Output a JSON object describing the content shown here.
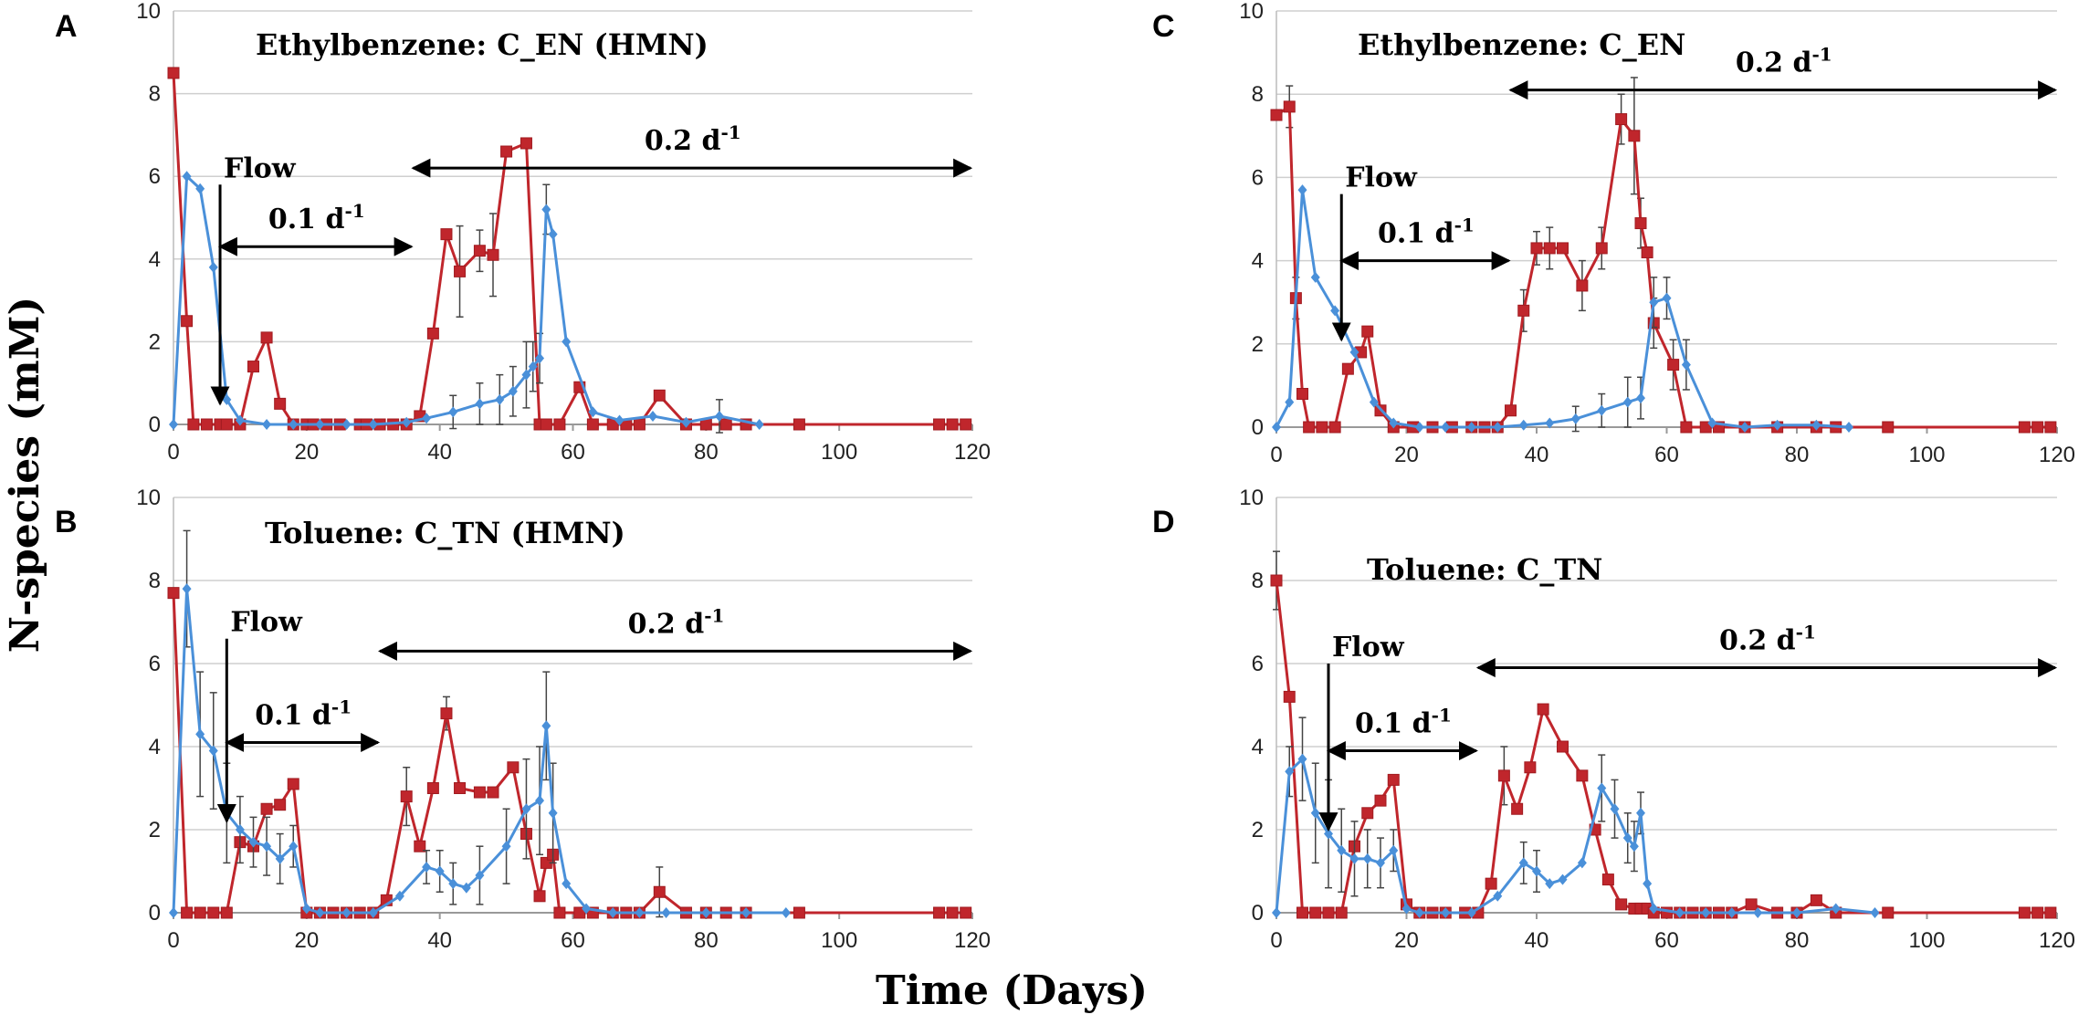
{
  "shared": {
    "y_axis_label": "N-species (mM)",
    "x_axis_label": "Time (Days)",
    "colors": {
      "red_series": "#c0262c",
      "blue_series": "#4a90d9",
      "grid": "#cfcfcf",
      "arrow": "#000000",
      "errorbar": "#444444"
    }
  },
  "chart_data": [
    {
      "type": "line",
      "panel": "A",
      "title": "Ethylbenzene: C_EN (HMN)",
      "xlim": [
        0,
        120
      ],
      "ylim": [
        0,
        10
      ],
      "xticks": [
        0,
        20,
        40,
        60,
        80,
        100,
        120
      ],
      "yticks": [
        0,
        2,
        4,
        6,
        8,
        10
      ],
      "annotations": {
        "flow": {
          "label": "Flow",
          "x": 7,
          "y_from": 5.8,
          "y_to": 0.5
        },
        "rate1": {
          "label": "0.1 d",
          "sup": "-1",
          "x_from": 7,
          "x_to": 36,
          "y": 4.3
        },
        "rate2": {
          "label": "0.2 d",
          "sup": "-1",
          "x_from": 36,
          "x_to": 120,
          "y": 6.2
        }
      },
      "series": [
        {
          "name": "red",
          "x": [
            0,
            2,
            3,
            5,
            7,
            8,
            10,
            12,
            14,
            16,
            18,
            20,
            21,
            23,
            25,
            28,
            29,
            31,
            33,
            35,
            37,
            39,
            41,
            43,
            46,
            48,
            50,
            53,
            55,
            56,
            58,
            61,
            63,
            66,
            68,
            70,
            73,
            77,
            80,
            83,
            86,
            94,
            115,
            117,
            119
          ],
          "y": [
            8.5,
            2.5,
            0,
            0,
            0,
            0,
            0,
            1.4,
            2.1,
            0.5,
            0,
            0,
            0,
            0,
            0,
            0,
            0,
            0,
            0,
            0,
            0.2,
            2.2,
            4.6,
            3.7,
            4.2,
            4.1,
            6.6,
            6.8,
            0,
            0,
            0,
            0.9,
            0,
            0,
            0,
            0,
            0.7,
            0,
            0,
            0,
            0,
            0,
            0,
            0,
            0
          ],
          "err": [
            0,
            0,
            0,
            0,
            0,
            0,
            0,
            0,
            0,
            0,
            0,
            0,
            0,
            0,
            0,
            0,
            0,
            0,
            0,
            0,
            0,
            0,
            0,
            1.1,
            0.5,
            1.0,
            0,
            0,
            0,
            0,
            0,
            0,
            0,
            0,
            0,
            0,
            0,
            0,
            0,
            0,
            0,
            0,
            0,
            0,
            0
          ]
        },
        {
          "name": "blue",
          "x": [
            0,
            2,
            4,
            6,
            8,
            10,
            14,
            18,
            22,
            26,
            30,
            35,
            38,
            42,
            46,
            49,
            51,
            53,
            54,
            55,
            56,
            57,
            59,
            63,
            67,
            72,
            77,
            82,
            88
          ],
          "y": [
            0,
            6.0,
            5.7,
            3.8,
            0.6,
            0.1,
            0,
            0,
            0,
            0,
            0,
            0.05,
            0.15,
            0.3,
            0.5,
            0.6,
            0.8,
            1.2,
            1.4,
            1.6,
            5.2,
            4.6,
            2.0,
            0.3,
            0.1,
            0.2,
            0.05,
            0.2,
            0
          ],
          "err": [
            0,
            0,
            0,
            0,
            0,
            0,
            0,
            0,
            0,
            0,
            0,
            0,
            0,
            0.4,
            0.5,
            0.6,
            0.6,
            0.8,
            0.6,
            0.6,
            0.6,
            0,
            0,
            0,
            0,
            0,
            0,
            0.4,
            0
          ]
        }
      ]
    },
    {
      "type": "line",
      "panel": "B",
      "title": "Toluene: C_TN (HMN)",
      "xlim": [
        0,
        120
      ],
      "ylim": [
        0,
        10
      ],
      "xticks": [
        0,
        20,
        40,
        60,
        80,
        100,
        120
      ],
      "yticks": [
        0,
        2,
        4,
        6,
        8,
        10
      ],
      "annotations": {
        "flow": {
          "label": "Flow",
          "x": 8,
          "y_from": 6.6,
          "y_to": 2.2
        },
        "rate1": {
          "label": "0.1 d",
          "sup": "-1",
          "x_from": 8,
          "x_to": 31,
          "y": 4.1
        },
        "rate2": {
          "label": "0.2 d",
          "sup": "-1",
          "x_from": 31,
          "x_to": 120,
          "y": 6.3
        }
      },
      "series": [
        {
          "name": "red",
          "x": [
            0,
            2,
            4,
            6,
            8,
            10,
            12,
            14,
            16,
            18,
            20,
            22,
            24,
            26,
            28,
            30,
            32,
            35,
            37,
            39,
            41,
            43,
            46,
            48,
            51,
            53,
            55,
            56,
            57,
            58,
            61,
            63,
            66,
            68,
            70,
            73,
            77,
            80,
            83,
            86,
            94,
            115,
            117,
            119
          ],
          "y": [
            7.7,
            0,
            0,
            0,
            0,
            1.7,
            1.6,
            2.5,
            2.6,
            3.1,
            0,
            0,
            0,
            0,
            0,
            0,
            0.3,
            2.8,
            1.6,
            3.0,
            4.8,
            3.0,
            2.9,
            2.9,
            3.5,
            1.9,
            0.4,
            1.2,
            1.4,
            0,
            0,
            0,
            0,
            0,
            0,
            0.5,
            0,
            0,
            0,
            0,
            0,
            0,
            0,
            0
          ],
          "err": [
            0,
            0,
            0,
            0,
            0,
            0,
            0,
            0,
            0,
            0,
            0,
            0,
            0,
            0,
            0,
            0,
            0,
            0.7,
            0,
            0,
            0.4,
            0,
            0,
            0,
            0,
            0,
            0,
            0,
            0,
            0,
            0,
            0,
            0,
            0,
            0,
            0.6,
            0,
            0,
            0,
            0,
            0,
            0,
            0,
            0
          ]
        },
        {
          "name": "blue",
          "x": [
            0,
            2,
            4,
            6,
            8,
            10,
            12,
            14,
            16,
            18,
            20,
            22,
            26,
            30,
            34,
            38,
            40,
            42,
            44,
            46,
            50,
            53,
            55,
            56,
            57,
            59,
            62,
            66,
            70,
            74,
            80,
            86,
            92
          ],
          "y": [
            0,
            7.8,
            4.3,
            3.9,
            2.4,
            2.0,
            1.7,
            1.6,
            1.3,
            1.6,
            0.1,
            0,
            0,
            0,
            0.4,
            1.1,
            1.0,
            0.7,
            0.6,
            0.9,
            1.6,
            2.5,
            2.7,
            4.5,
            2.4,
            0.7,
            0.1,
            0,
            0,
            0,
            0,
            0,
            0
          ],
          "err": [
            0,
            1.4,
            1.5,
            1.4,
            1.2,
            0.8,
            0.6,
            0.7,
            0.6,
            0.5,
            0,
            0,
            0,
            0,
            0,
            0.4,
            0.5,
            0.5,
            0,
            0.7,
            0.9,
            1.2,
            1.3,
            1.3,
            1.2,
            0,
            0,
            0,
            0,
            0,
            0,
            0,
            0
          ]
        }
      ]
    },
    {
      "type": "line",
      "panel": "C",
      "title": "Ethylbenzene: C_EN",
      "xlim": [
        0,
        120
      ],
      "ylim": [
        0,
        10
      ],
      "xticks": [
        0,
        20,
        40,
        60,
        80,
        100,
        120
      ],
      "yticks": [
        0,
        2,
        4,
        6,
        8,
        10
      ],
      "annotations": {
        "flow": {
          "label": "Flow",
          "x": 10,
          "y_from": 5.6,
          "y_to": 2.1
        },
        "rate1": {
          "label": "0.1 d",
          "sup": "-1",
          "x_from": 10,
          "x_to": 36,
          "y": 4.0
        },
        "rate2": {
          "label": "0.2 d",
          "sup": "-1",
          "x_from": 36,
          "x_to": 120,
          "y": 8.1
        }
      },
      "series": [
        {
          "name": "red",
          "x": [
            0,
            2,
            3,
            4,
            5,
            7,
            9,
            11,
            13,
            14,
            16,
            18,
            21,
            24,
            27,
            30,
            32,
            34,
            36,
            38,
            40,
            42,
            44,
            47,
            50,
            53,
            55,
            56,
            57,
            58,
            61,
            63,
            66,
            68,
            72,
            77,
            83,
            86,
            94,
            115,
            117,
            119
          ],
          "y": [
            7.5,
            7.7,
            3.1,
            0.8,
            0,
            0,
            0,
            1.4,
            1.8,
            2.3,
            0.4,
            0,
            0,
            0,
            0,
            0,
            0,
            0,
            0.4,
            2.8,
            4.3,
            4.3,
            4.3,
            3.4,
            4.3,
            7.4,
            7.0,
            4.9,
            4.2,
            2.5,
            1.5,
            0,
            0,
            0,
            0,
            0,
            0,
            0,
            0,
            0,
            0,
            0
          ],
          "err": [
            0,
            0.5,
            0.5,
            0,
            0,
            0,
            0,
            0,
            0,
            0,
            0,
            0,
            0,
            0,
            0,
            0,
            0,
            0,
            0,
            0.5,
            0.4,
            0.5,
            0,
            0.6,
            0.5,
            0.6,
            1.4,
            0.6,
            0,
            0.6,
            0.6,
            0,
            0,
            0,
            0,
            0,
            0,
            0,
            0,
            0,
            0,
            0
          ]
        },
        {
          "name": "blue",
          "x": [
            0,
            2,
            4,
            6,
            9,
            12,
            15,
            18,
            22,
            26,
            30,
            34,
            38,
            42,
            46,
            50,
            54,
            56,
            58,
            60,
            63,
            67,
            72,
            77,
            83,
            88
          ],
          "y": [
            0,
            0.6,
            5.7,
            3.6,
            2.8,
            1.8,
            0.6,
            0.1,
            0,
            0,
            0,
            0,
            0.05,
            0.1,
            0.2,
            0.4,
            0.6,
            0.7,
            3.0,
            3.1,
            1.5,
            0.1,
            0,
            0.05,
            0.05,
            0
          ],
          "err": [
            0,
            0,
            0,
            0,
            0,
            0,
            0,
            0,
            0,
            0,
            0,
            0,
            0,
            0,
            0.3,
            0.4,
            0.6,
            0.5,
            0.6,
            0.5,
            0.6,
            0,
            0,
            0,
            0,
            0
          ]
        }
      ]
    },
    {
      "type": "line",
      "panel": "D",
      "title": "Toluene: C_TN",
      "xlim": [
        0,
        120
      ],
      "ylim": [
        0,
        10
      ],
      "xticks": [
        0,
        20,
        40,
        60,
        80,
        100,
        120
      ],
      "yticks": [
        0,
        2,
        4,
        6,
        8,
        10
      ],
      "annotations": {
        "flow": {
          "label": "Flow",
          "x": 8,
          "y_from": 6.0,
          "y_to": 2.0
        },
        "rate1": {
          "label": "0.1 d",
          "sup": "-1",
          "x_from": 8,
          "x_to": 31,
          "y": 3.9
        },
        "rate2": {
          "label": "0.2 d",
          "sup": "-1",
          "x_from": 31,
          "x_to": 120,
          "y": 5.9
        }
      },
      "series": [
        {
          "name": "red",
          "x": [
            0,
            2,
            4,
            6,
            8,
            10,
            12,
            14,
            16,
            18,
            20,
            22,
            24,
            26,
            29,
            31,
            33,
            35,
            37,
            39,
            41,
            44,
            47,
            49,
            51,
            53,
            55,
            56,
            57,
            58,
            60,
            62,
            64,
            66,
            68,
            70,
            73,
            77,
            80,
            83,
            86,
            94,
            115,
            117,
            119
          ],
          "y": [
            8.0,
            5.2,
            0,
            0,
            0,
            0,
            1.6,
            2.4,
            2.7,
            3.2,
            0.2,
            0,
            0,
            0,
            0,
            0,
            0.7,
            3.3,
            2.5,
            3.5,
            4.9,
            4.0,
            3.3,
            2.0,
            0.8,
            0.2,
            0.1,
            0.1,
            0.1,
            0,
            0,
            0,
            0,
            0,
            0,
            0,
            0.2,
            0,
            0,
            0.3,
            0,
            0,
            0,
            0,
            0
          ],
          "err": [
            0.7,
            0,
            0,
            0,
            0,
            0,
            0,
            0,
            0,
            0,
            0,
            0,
            0,
            0,
            0,
            0,
            0,
            0.7,
            0,
            0,
            0,
            0,
            0,
            0,
            0,
            0,
            0,
            0,
            0,
            0,
            0,
            0,
            0,
            0,
            0,
            0,
            0,
            0,
            0,
            0,
            0,
            0,
            0,
            0,
            0
          ]
        },
        {
          "name": "blue",
          "x": [
            0,
            2,
            4,
            6,
            8,
            10,
            12,
            14,
            16,
            18,
            20,
            22,
            26,
            30,
            34,
            38,
            40,
            42,
            44,
            47,
            50,
            52,
            54,
            55,
            56,
            57,
            58,
            62,
            66,
            70,
            74,
            80,
            86,
            92
          ],
          "y": [
            0,
            3.4,
            3.7,
            2.4,
            1.9,
            1.5,
            1.3,
            1.3,
            1.2,
            1.5,
            0.1,
            0,
            0,
            0,
            0.4,
            1.2,
            1.0,
            0.7,
            0.8,
            1.2,
            3.0,
            2.5,
            1.8,
            1.6,
            2.4,
            0.7,
            0.1,
            0,
            0,
            0,
            0,
            0,
            0.1,
            0
          ],
          "err": [
            0,
            0.6,
            1.0,
            1.2,
            1.3,
            1.0,
            0.9,
            0.7,
            0.6,
            0.5,
            0,
            0,
            0,
            0,
            0,
            0.5,
            0.5,
            0,
            0,
            0,
            0.8,
            0.7,
            0.6,
            0.6,
            0.5,
            0,
            0,
            0,
            0,
            0,
            0,
            0,
            0,
            0
          ]
        }
      ]
    }
  ]
}
